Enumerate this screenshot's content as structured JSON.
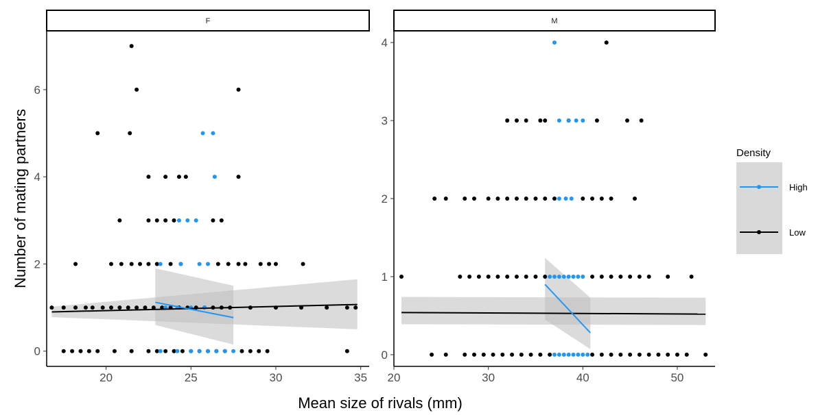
{
  "chart_data": {
    "type": "scatter",
    "xlabel": "Mean size of rivals (mm)",
    "ylabel": "Number of mating partners",
    "legend": {
      "title": "Density",
      "position": "right",
      "entries": [
        {
          "label": "High",
          "color": "#2196F3"
        },
        {
          "label": "Low",
          "color": "#000000"
        }
      ]
    },
    "grid": false,
    "colors": {
      "High": "#2196F3",
      "Low": "#000000",
      "ribbon": "#bdbdbd"
    },
    "facets": [
      {
        "strip": "F",
        "xlim": [
          16.5,
          35.5
        ],
        "ylim": [
          -0.35,
          7.35
        ],
        "xticks": [
          20,
          25,
          30,
          35
        ],
        "yticks": [
          0,
          2,
          4,
          6
        ],
        "points": {
          "Low": [
            [
              17.5,
              0
            ],
            [
              18,
              0
            ],
            [
              18.5,
              0
            ],
            [
              19,
              0
            ],
            [
              19.5,
              0
            ],
            [
              20.5,
              0
            ],
            [
              21.5,
              0
            ],
            [
              22.5,
              0
            ],
            [
              23,
              0
            ],
            [
              23.5,
              0
            ],
            [
              24,
              0
            ],
            [
              24.5,
              0
            ],
            [
              25,
              0
            ],
            [
              25.5,
              0
            ],
            [
              26,
              0
            ],
            [
              26.5,
              0
            ],
            [
              27,
              0
            ],
            [
              28,
              0
            ],
            [
              28.5,
              0
            ],
            [
              29,
              0
            ],
            [
              29.5,
              0
            ],
            [
              34.2,
              0
            ],
            [
              16.8,
              1
            ],
            [
              17.5,
              1
            ],
            [
              18.2,
              1
            ],
            [
              18.8,
              1
            ],
            [
              19.2,
              1
            ],
            [
              19.8,
              1
            ],
            [
              20.3,
              1
            ],
            [
              20.8,
              1
            ],
            [
              21.3,
              1
            ],
            [
              21.8,
              1
            ],
            [
              22.3,
              1
            ],
            [
              22.8,
              1
            ],
            [
              23.3,
              1
            ],
            [
              23.8,
              1
            ],
            [
              24.3,
              1
            ],
            [
              24.8,
              1
            ],
            [
              25.3,
              1
            ],
            [
              25.8,
              1
            ],
            [
              26.3,
              1
            ],
            [
              26.8,
              1
            ],
            [
              27.3,
              1
            ],
            [
              28.5,
              1
            ],
            [
              30,
              1
            ],
            [
              31.5,
              1
            ],
            [
              33,
              1
            ],
            [
              34.2,
              1
            ],
            [
              34.7,
              1
            ],
            [
              18.2,
              2
            ],
            [
              20.3,
              2
            ],
            [
              20.9,
              2
            ],
            [
              21.5,
              2
            ],
            [
              22,
              2
            ],
            [
              22.5,
              2
            ],
            [
              23,
              2
            ],
            [
              23.8,
              2
            ],
            [
              24.4,
              2
            ],
            [
              26.6,
              2
            ],
            [
              27.2,
              2
            ],
            [
              27.8,
              2
            ],
            [
              28.2,
              2
            ],
            [
              29.1,
              2
            ],
            [
              29.6,
              2
            ],
            [
              30,
              2
            ],
            [
              31.6,
              2
            ],
            [
              20.8,
              3
            ],
            [
              22.5,
              3
            ],
            [
              23,
              3
            ],
            [
              23.5,
              3
            ],
            [
              24,
              3
            ],
            [
              26.3,
              3
            ],
            [
              26.8,
              3
            ],
            [
              22.5,
              4
            ],
            [
              23.5,
              4
            ],
            [
              24.3,
              4
            ],
            [
              24.7,
              4
            ],
            [
              27.8,
              4
            ],
            [
              19.5,
              5
            ],
            [
              21.4,
              5
            ],
            [
              21.8,
              6
            ],
            [
              27.8,
              6
            ],
            [
              21.5,
              7
            ]
          ],
          "High": [
            [
              23.2,
              0
            ],
            [
              24.2,
              0
            ],
            [
              25,
              0
            ],
            [
              25.5,
              0
            ],
            [
              26,
              0
            ],
            [
              26.5,
              0
            ],
            [
              27,
              0
            ],
            [
              27.5,
              0
            ],
            [
              23.5,
              1
            ],
            [
              24.2,
              1
            ],
            [
              25,
              1
            ],
            [
              25.8,
              1
            ],
            [
              23.2,
              2
            ],
            [
              24.4,
              2
            ],
            [
              25.5,
              2
            ],
            [
              26,
              2
            ],
            [
              24.3,
              3
            ],
            [
              24.8,
              3
            ],
            [
              25.3,
              3
            ],
            [
              26.4,
              4
            ],
            [
              25.7,
              5
            ],
            [
              26.3,
              5
            ]
          ]
        },
        "fits": {
          "Low": {
            "x": [
              16.8,
              34.8
            ],
            "y": [
              0.9,
              1.07
            ],
            "lower": [
              0.78,
              0.5
            ],
            "upper": [
              1.02,
              1.65
            ]
          },
          "High": {
            "x": [
              22.9,
              27.5
            ],
            "y": [
              1.12,
              0.77
            ],
            "lower": [
              0.6,
              0.15
            ],
            "upper": [
              1.9,
              1.5
            ]
          }
        }
      },
      {
        "strip": "M",
        "xlim": [
          20,
          54
        ],
        "ylim": [
          -0.15,
          4.15
        ],
        "xticks": [
          20,
          30,
          40,
          50
        ],
        "yticks": [
          0,
          1,
          2,
          3,
          4
        ],
        "points": {
          "Low": [
            [
              24,
              0
            ],
            [
              25.5,
              0
            ],
            [
              27.5,
              0
            ],
            [
              28.5,
              0
            ],
            [
              29.5,
              0
            ],
            [
              30.5,
              0
            ],
            [
              31.5,
              0
            ],
            [
              32.5,
              0
            ],
            [
              33.5,
              0
            ],
            [
              34.5,
              0
            ],
            [
              35.5,
              0
            ],
            [
              36.5,
              0
            ],
            [
              41,
              0
            ],
            [
              42,
              0
            ],
            [
              43,
              0
            ],
            [
              44,
              0
            ],
            [
              45,
              0
            ],
            [
              46,
              0
            ],
            [
              47,
              0
            ],
            [
              48,
              0
            ],
            [
              49,
              0
            ],
            [
              50,
              0
            ],
            [
              51,
              0
            ],
            [
              53,
              0
            ],
            [
              20.8,
              1
            ],
            [
              27,
              1
            ],
            [
              28,
              1
            ],
            [
              29,
              1
            ],
            [
              30,
              1
            ],
            [
              31,
              1
            ],
            [
              32,
              1
            ],
            [
              33,
              1
            ],
            [
              34,
              1
            ],
            [
              35,
              1
            ],
            [
              36,
              1
            ],
            [
              41,
              1
            ],
            [
              42,
              1
            ],
            [
              43,
              1
            ],
            [
              44,
              1
            ],
            [
              45,
              1
            ],
            [
              46,
              1
            ],
            [
              47,
              1
            ],
            [
              49,
              1
            ],
            [
              51.5,
              1
            ],
            [
              24.3,
              2
            ],
            [
              25.5,
              2
            ],
            [
              27.5,
              2
            ],
            [
              28.5,
              2
            ],
            [
              30,
              2
            ],
            [
              31,
              2
            ],
            [
              32,
              2
            ],
            [
              33,
              2
            ],
            [
              34,
              2
            ],
            [
              35,
              2
            ],
            [
              36,
              2
            ],
            [
              37,
              2
            ],
            [
              40,
              2
            ],
            [
              41,
              2
            ],
            [
              42,
              2
            ],
            [
              43,
              2
            ],
            [
              45.5,
              2
            ],
            [
              32,
              3
            ],
            [
              33,
              3
            ],
            [
              34,
              3
            ],
            [
              35.5,
              3
            ],
            [
              36,
              3
            ],
            [
              38.5,
              3
            ],
            [
              41.5,
              3
            ],
            [
              44.7,
              3
            ],
            [
              46.2,
              3
            ],
            [
              42.5,
              4
            ]
          ],
          "High": [
            [
              37,
              0
            ],
            [
              37.5,
              0
            ],
            [
              38,
              0
            ],
            [
              38.5,
              0
            ],
            [
              39,
              0
            ],
            [
              39.5,
              0
            ],
            [
              40,
              0
            ],
            [
              40.5,
              0
            ],
            [
              36.5,
              1
            ],
            [
              37,
              1
            ],
            [
              37.5,
              1
            ],
            [
              38,
              1
            ],
            [
              38.5,
              1
            ],
            [
              39,
              1
            ],
            [
              39.5,
              1
            ],
            [
              40,
              1
            ],
            [
              37.5,
              2
            ],
            [
              38.2,
              2
            ],
            [
              38.8,
              2
            ],
            [
              37.5,
              3
            ],
            [
              38.5,
              3
            ],
            [
              39.3,
              3
            ],
            [
              40,
              3
            ],
            [
              37,
              4
            ]
          ]
        },
        "fits": {
          "Low": {
            "x": [
              20.8,
              53
            ],
            "y": [
              0.54,
              0.52
            ],
            "lower": [
              0.39,
              0.38
            ],
            "upper": [
              0.74,
              0.73
            ]
          },
          "High": {
            "x": [
              36,
              40.8
            ],
            "y": [
              0.9,
              0.28
            ],
            "lower": [
              0.45,
              0.07
            ],
            "upper": [
              1.24,
              0.73
            ]
          }
        }
      }
    ]
  }
}
